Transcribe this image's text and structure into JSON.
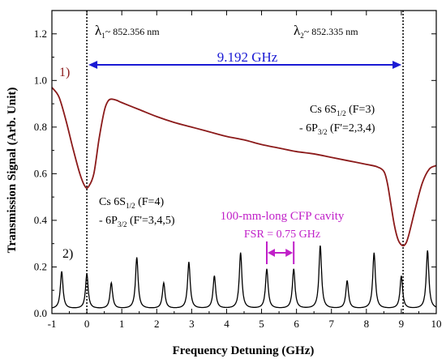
{
  "chart_data": {
    "type": "line",
    "xlabel": "Frequency Detuning (GHz)",
    "ylabel": "Transmission Signal (Arb. Unit)",
    "xlim": [
      -1,
      10
    ],
    "ylim": [
      0,
      1.3
    ],
    "x_ticks": [
      "-1",
      "0",
      "1",
      "2",
      "3",
      "4",
      "5",
      "6",
      "7",
      "8",
      "9",
      "10"
    ],
    "y_ticks": [
      "0.0",
      "0.2",
      "0.4",
      "0.6",
      "0.8",
      "1.0",
      "1.2"
    ],
    "grid": false,
    "series": [
      {
        "name": "1)",
        "color": "#8b1a1a",
        "x": [
          -1.0,
          -0.8,
          -0.6,
          -0.4,
          -0.2,
          -0.05,
          0.05,
          0.2,
          0.35,
          0.5,
          0.6,
          0.7,
          0.85,
          1.0,
          1.5,
          2.0,
          2.5,
          3.0,
          3.5,
          4.0,
          4.5,
          5.0,
          5.5,
          6.0,
          6.5,
          7.0,
          7.5,
          8.0,
          8.3,
          8.5,
          8.6,
          8.7,
          8.8,
          8.9,
          9.0,
          9.1,
          9.2,
          9.4,
          9.6,
          9.8,
          10.0
        ],
        "y": [
          0.97,
          0.93,
          0.83,
          0.71,
          0.6,
          0.545,
          0.545,
          0.6,
          0.75,
          0.87,
          0.91,
          0.92,
          0.915,
          0.905,
          0.875,
          0.845,
          0.82,
          0.8,
          0.78,
          0.76,
          0.745,
          0.725,
          0.71,
          0.695,
          0.685,
          0.67,
          0.655,
          0.64,
          0.63,
          0.61,
          0.56,
          0.47,
          0.38,
          0.32,
          0.295,
          0.295,
          0.33,
          0.45,
          0.56,
          0.62,
          0.635
        ]
      },
      {
        "name": "2)",
        "color": "#000000",
        "baseline": 0.02,
        "peak_x": [
          -0.72,
          0.0,
          0.7,
          1.43,
          2.2,
          2.92,
          3.65,
          4.4,
          5.15,
          5.92,
          6.68,
          7.45,
          8.22,
          9.0,
          9.75
        ],
        "peak_y": [
          0.18,
          0.17,
          0.13,
          0.24,
          0.13,
          0.22,
          0.16,
          0.26,
          0.19,
          0.19,
          0.29,
          0.14,
          0.26,
          0.16,
          0.27
        ]
      }
    ],
    "annotations": {
      "lambda1": {
        "symbol": "λ",
        "sub": "1",
        "rest": "~ 852.356 nm",
        "x": 0
      },
      "lambda2": {
        "symbol": "λ",
        "sub": "2",
        "rest": "~ 852.335 nm",
        "x": 9.05
      },
      "span_label": "9.192 GHz",
      "label1": "1)",
      "label2": "2)",
      "cavity_label": "100-mm-long CFP cavity",
      "fsr_label": "FSR = 0.75 GHz",
      "trans1_line1": {
        "a": "Cs 6S",
        "sub": "1/2",
        "b": " (F=4)"
      },
      "trans1_line2": {
        "a": "- 6P",
        "sub": "3/2",
        "b": " (F'=3,4,5)"
      },
      "trans2_line1": {
        "a": "Cs 6S",
        "sub": "1/2",
        "b": " (F=3)"
      },
      "trans2_line2": {
        "a": "- 6P",
        "sub": "3/2",
        "b": " (F'=2,3,4)"
      }
    },
    "colors": {
      "span_arrow": "#1a1ad4",
      "cavity": "#c020c8",
      "series1": "#8b1a1a",
      "series2": "#000000"
    }
  }
}
